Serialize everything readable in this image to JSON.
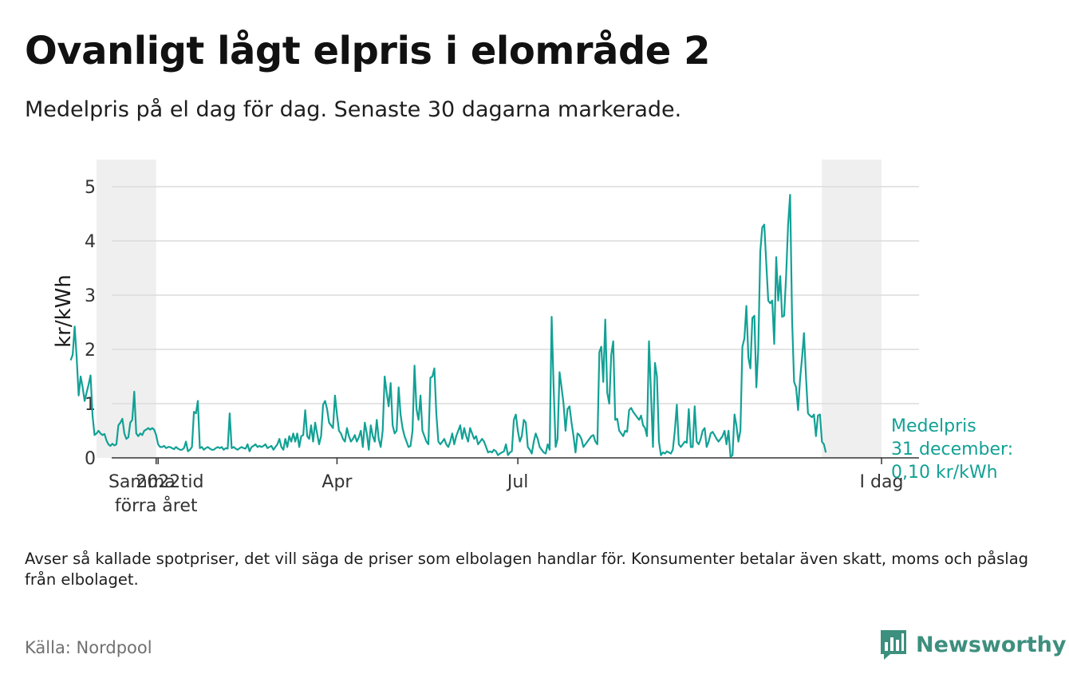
{
  "title": "Ovanligt lågt elpris i elområde 2",
  "subtitle": "Medelpris på el dag för dag.  Senaste 30 dagarna markerade.",
  "note": "Avser så kallade spotpriser, det vill säga de priser som elbolagen handlar för. Konsumenter betalar även skatt, moms och påslag från elbolaget.",
  "source": "Källa: Nordpool",
  "brand": "Newsworthy",
  "colors": {
    "line": "#12a195",
    "annotation": "#12a195",
    "band": "#efefef",
    "grid": "#dcdcdc",
    "brand": "#3d8f7e"
  },
  "chart_data": {
    "type": "line",
    "ylabel": "kr/kWh",
    "ylim": [
      0,
      5.5
    ],
    "yticks": [
      0,
      1,
      2,
      3,
      4,
      5
    ],
    "xlim": [
      "2021-12-01",
      "2022-12-31"
    ],
    "xticks": [
      {
        "date": "2021-12-31",
        "label": "Samma tid\nförra året"
      },
      {
        "date": "2022-01-01",
        "label": "2022"
      },
      {
        "date": "2022-04-01",
        "label": "Apr"
      },
      {
        "date": "2022-07-01",
        "label": "Jul"
      },
      {
        "date": "2022-12-31",
        "label": "I dag"
      }
    ],
    "highlight_periods": [
      [
        "2021-12-01",
        "2021-12-31"
      ],
      [
        "2022-12-01",
        "2022-12-31"
      ]
    ],
    "annotation": {
      "lines": [
        "Medelpris",
        "31 december:",
        "0,10 kr/kWh"
      ],
      "date": "2022-12-31",
      "value": 0.1
    },
    "series": [
      {
        "start_date": "2021-11-18",
        "values": [
          1.8,
          1.9,
          2.42,
          1.85,
          1.15,
          1.5,
          1.3,
          1.05,
          1.2,
          1.35,
          1.52,
          0.78,
          0.42,
          0.45,
          0.5,
          0.45,
          0.42,
          0.44,
          0.32,
          0.25,
          0.22,
          0.26,
          0.23,
          0.25,
          0.6,
          0.65,
          0.72,
          0.45,
          0.35,
          0.38,
          0.65,
          0.7,
          1.22,
          0.45,
          0.4,
          0.45,
          0.42,
          0.5,
          0.52,
          0.55,
          0.52,
          0.55,
          0.52,
          0.42,
          0.25,
          0.2,
          0.2,
          0.22,
          0.18,
          0.2,
          0.2,
          0.18,
          0.16,
          0.2,
          0.17,
          0.15,
          0.15,
          0.18,
          0.3,
          0.12,
          0.15,
          0.2,
          0.85,
          0.82,
          1.05,
          0.18,
          0.2,
          0.15,
          0.18,
          0.2,
          0.17,
          0.15,
          0.15,
          0.18,
          0.2,
          0.18,
          0.2,
          0.15,
          0.18,
          0.17,
          0.82,
          0.18,
          0.2,
          0.17,
          0.15,
          0.18,
          0.2,
          0.18,
          0.17,
          0.25,
          0.12,
          0.2,
          0.22,
          0.25,
          0.2,
          0.22,
          0.2,
          0.22,
          0.25,
          0.18,
          0.2,
          0.22,
          0.15,
          0.2,
          0.25,
          0.35,
          0.2,
          0.15,
          0.35,
          0.2,
          0.4,
          0.3,
          0.45,
          0.3,
          0.45,
          0.2,
          0.4,
          0.42,
          0.88,
          0.4,
          0.35,
          0.6,
          0.3,
          0.65,
          0.45,
          0.25,
          0.4,
          0.98,
          1.05,
          0.9,
          0.65,
          0.6,
          0.55,
          1.15,
          0.8,
          0.5,
          0.45,
          0.35,
          0.3,
          0.55,
          0.4,
          0.3,
          0.35,
          0.42,
          0.3,
          0.38,
          0.5,
          0.2,
          0.65,
          0.45,
          0.15,
          0.6,
          0.4,
          0.3,
          0.7,
          0.35,
          0.2,
          0.5,
          1.5,
          1.2,
          0.95,
          1.38,
          0.6,
          0.45,
          0.5,
          1.3,
          0.8,
          0.55,
          0.4,
          0.3,
          0.2,
          0.22,
          0.5,
          1.7,
          0.9,
          0.7,
          1.15,
          0.5,
          0.4,
          0.3,
          0.25,
          1.48,
          1.5,
          1.65,
          0.8,
          0.3,
          0.25,
          0.3,
          0.35,
          0.25,
          0.2,
          0.3,
          0.45,
          0.25,
          0.4,
          0.5,
          0.6,
          0.35,
          0.55,
          0.4,
          0.3,
          0.55,
          0.45,
          0.35,
          0.4,
          0.25,
          0.3,
          0.35,
          0.3,
          0.2,
          0.1,
          0.12,
          0.1,
          0.15,
          0.12,
          0.05,
          0.08,
          0.1,
          0.12,
          0.25,
          0.05,
          0.1,
          0.12,
          0.7,
          0.8,
          0.5,
          0.3,
          0.4,
          0.7,
          0.65,
          0.2,
          0.15,
          0.08,
          0.3,
          0.45,
          0.35,
          0.2,
          0.15,
          0.1,
          0.08,
          0.25,
          0.15,
          2.6,
          1.3,
          0.2,
          0.35,
          1.58,
          1.3,
          1.0,
          0.5,
          0.9,
          0.95,
          0.65,
          0.4,
          0.1,
          0.45,
          0.42,
          0.35,
          0.2,
          0.25,
          0.3,
          0.35,
          0.4,
          0.42,
          0.3,
          0.25,
          1.95,
          2.05,
          1.4,
          2.55,
          1.2,
          1.0,
          1.9,
          2.15,
          0.7,
          0.72,
          0.5,
          0.45,
          0.4,
          0.5,
          0.48,
          0.88,
          0.92,
          0.85,
          0.8,
          0.75,
          0.7,
          0.78,
          0.6,
          0.55,
          0.4,
          2.15,
          1.2,
          0.2,
          1.75,
          1.5,
          0.3,
          0.05,
          0.1,
          0.08,
          0.12,
          0.1,
          0.08,
          0.15,
          0.5,
          0.98,
          0.25,
          0.2,
          0.25,
          0.3,
          0.28,
          0.9,
          0.2,
          0.2,
          0.95,
          0.3,
          0.25,
          0.35,
          0.5,
          0.55,
          0.2,
          0.3,
          0.45,
          0.48,
          0.42,
          0.35,
          0.3,
          0.35,
          0.4,
          0.5,
          0.25,
          0.5,
          0.02,
          0.05,
          0.8,
          0.6,
          0.3,
          0.5,
          2.05,
          2.2,
          2.8,
          1.85,
          1.65,
          2.58,
          2.62,
          1.3,
          2.0,
          3.8,
          4.25,
          4.3,
          3.6,
          2.9,
          2.85,
          2.9,
          2.1,
          3.7,
          2.9,
          3.35,
          2.6,
          2.62,
          3.35,
          4.3,
          4.85,
          2.55,
          1.4,
          1.3,
          0.88,
          1.45,
          1.85,
          2.3,
          1.5,
          0.82,
          0.78,
          0.75,
          0.8,
          0.4,
          0.78,
          0.8,
          0.3,
          0.25,
          0.1
        ]
      }
    ]
  }
}
